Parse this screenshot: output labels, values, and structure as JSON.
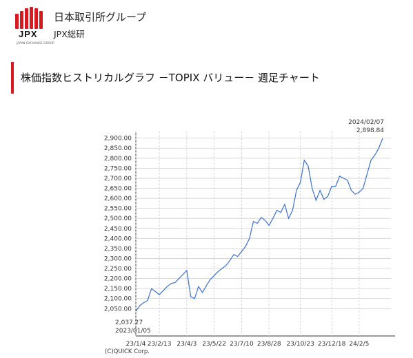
{
  "header": {
    "logo_text": "JPX",
    "logo_small": "JAPAN EXCHANGE GROUP",
    "org_name": "日本取引所グループ",
    "org_sub": "JPX総研"
  },
  "page_title": "株価指数ヒストリカルグラフ －TOPIX バリュー－ 週足チャート",
  "credit": "(C)QUICK Corp.",
  "colors": {
    "brand_red": "#d71a21",
    "line": "#3a6fd8",
    "grid": "#cfcfcf"
  },
  "chart_data": {
    "type": "line",
    "title": "",
    "xlabel": "",
    "ylabel": "",
    "ylim": [
      2037.27,
      2898.84
    ],
    "y_ticks": [
      "2,900.00",
      "2,850.00",
      "2,800.00",
      "2,750.00",
      "2,700.00",
      "2,650.00",
      "2,600.00",
      "2,550.00",
      "2,500.00",
      "2,450.00",
      "2,400.00",
      "2,350.00",
      "2,300.00",
      "2,250.00",
      "2,200.00",
      "2,150.00",
      "2,100.00",
      "2,050.00"
    ],
    "y_tick_values": [
      2900,
      2850,
      2800,
      2750,
      2700,
      2650,
      2600,
      2550,
      2500,
      2450,
      2400,
      2350,
      2300,
      2250,
      2200,
      2150,
      2100,
      2050
    ],
    "x_ticks": [
      "23/1/4",
      "23/2/13",
      "23/4/3",
      "23/5/22",
      "23/7/10",
      "23/8/28",
      "23/10/23",
      "23/12/18",
      "24/2/5"
    ],
    "x_tick_weeks": [
      0,
      6,
      13,
      20,
      27,
      34,
      42,
      50,
      57
    ],
    "start_label": {
      "value": "2,037.27",
      "date": "2023/01/05"
    },
    "end_label": {
      "value": "2,898.84",
      "date": "2024/02/07"
    },
    "series": [
      {
        "values": [
          2037.27,
          2065,
          2080,
          2090,
          2150,
          2135,
          2120,
          2140,
          2160,
          2175,
          2180,
          2200,
          2220,
          2240,
          2110,
          2100,
          2160,
          2130,
          2165,
          2195,
          2215,
          2235,
          2250,
          2265,
          2290,
          2320,
          2310,
          2335,
          2360,
          2400,
          2485,
          2475,
          2505,
          2490,
          2465,
          2500,
          2540,
          2530,
          2570,
          2500,
          2540,
          2640,
          2680,
          2790,
          2760,
          2650,
          2590,
          2640,
          2595,
          2610,
          2660,
          2660,
          2710,
          2700,
          2690,
          2640,
          2620,
          2630,
          2650,
          2720,
          2790,
          2815,
          2850,
          2898.84
        ]
      }
    ]
  }
}
